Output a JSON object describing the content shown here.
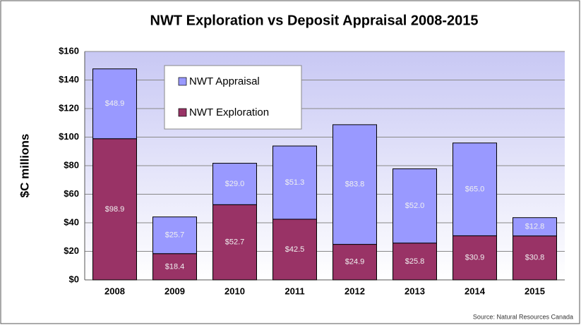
{
  "chart_data": {
    "type": "stacked_bar",
    "title": "NWT Exploration vs Deposit Appraisal  2008-2015",
    "y_label": "$C millions",
    "source": "Source: Natural Resources Canada",
    "categories": [
      "2008",
      "2009",
      "2010",
      "2011",
      "2012",
      "2013",
      "2014",
      "2015"
    ],
    "series": [
      {
        "name": "NWT Exploration",
        "color": "#993366",
        "values": [
          98.9,
          18.4,
          52.7,
          42.5,
          24.9,
          25.8,
          30.9,
          30.8
        ],
        "value_labels": [
          "$98.9",
          "$18.4",
          "$52.7",
          "$42.5",
          "$24.9",
          "$25.8",
          "$30.9",
          "$30.8"
        ]
      },
      {
        "name": "NWT Appraisal",
        "color": "#9999ff",
        "values": [
          48.9,
          25.7,
          29.0,
          51.3,
          83.8,
          52.0,
          65.0,
          12.8
        ],
        "value_labels": [
          "$48.9",
          "$25.7",
          "$29.0",
          "$51.3",
          "$83.8",
          "$52.0",
          "$65.0",
          "$12.8"
        ]
      }
    ],
    "ylim": [
      0,
      160
    ],
    "yticks": [
      {
        "value": 0,
        "label": "$0"
      },
      {
        "value": 20,
        "label": "$20"
      },
      {
        "value": 40,
        "label": "$40"
      },
      {
        "value": 60,
        "label": "$60"
      },
      {
        "value": 80,
        "label": "$80"
      },
      {
        "value": 100,
        "label": "$100"
      },
      {
        "value": 120,
        "label": "$120"
      },
      {
        "value": 140,
        "label": "$140"
      },
      {
        "value": 160,
        "label": "$160"
      }
    ],
    "grid": true
  }
}
